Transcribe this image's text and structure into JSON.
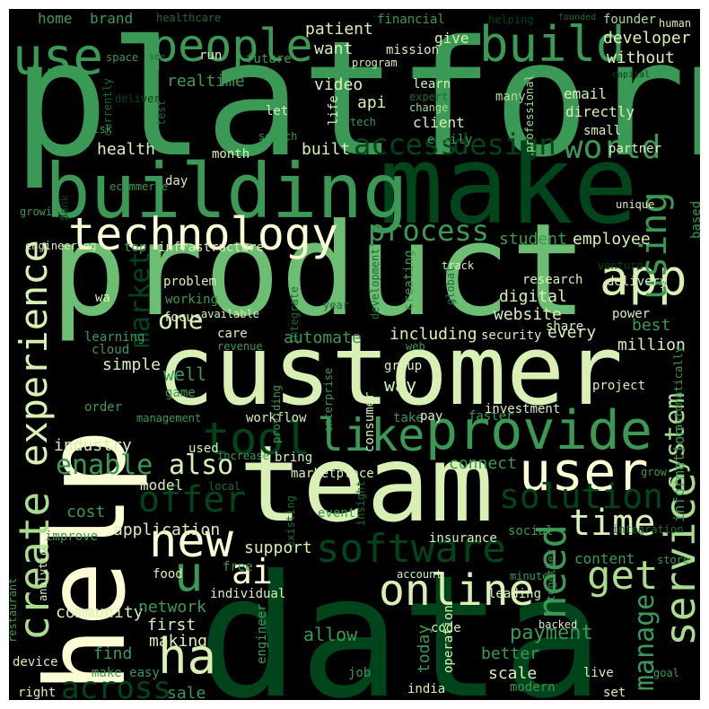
{
  "palette": {
    "background": "#000000",
    "darkest": "#00441b",
    "dark": "#1b6b3a",
    "mid": "#3a9a55",
    "midlight": "#6cbf72",
    "light": "#a9dc8e",
    "pale": "#d9f0b5",
    "cream": "#fdfdd5"
  },
  "words": [
    {
      "text": "platform",
      "color": "mid"
    },
    {
      "text": "product",
      "color": "midlight"
    },
    {
      "text": "data",
      "color": "darkest"
    },
    {
      "text": "help",
      "color": "cream"
    },
    {
      "text": "customer",
      "color": "pale"
    },
    {
      "text": "team",
      "color": "pale"
    },
    {
      "text": "make",
      "color": "darkest"
    },
    {
      "text": "building",
      "color": "mid"
    },
    {
      "text": "technology",
      "color": "cream"
    },
    {
      "text": "people",
      "color": "mid"
    },
    {
      "text": "use",
      "color": "mid"
    },
    {
      "text": "build",
      "color": "mid"
    },
    {
      "text": "app",
      "color": "pale"
    },
    {
      "text": "using",
      "color": "mid"
    },
    {
      "text": "tool",
      "color": "darkest"
    },
    {
      "text": "like",
      "color": "mid"
    },
    {
      "text": "provide",
      "color": "mid"
    },
    {
      "text": "user",
      "color": "cream"
    },
    {
      "text": "experience",
      "color": "pale"
    },
    {
      "text": "create",
      "color": "light"
    },
    {
      "text": "software",
      "color": "darkest"
    },
    {
      "text": "online",
      "color": "pale"
    },
    {
      "text": "service",
      "color": "light"
    },
    {
      "text": "ha",
      "color": "pale"
    },
    {
      "text": "need",
      "color": "mid"
    },
    {
      "text": "new",
      "color": "cream"
    },
    {
      "text": "ai",
      "color": "cream"
    },
    {
      "text": "get",
      "color": "light"
    },
    {
      "text": "time",
      "color": "pale"
    },
    {
      "text": "solution",
      "color": "darkest"
    },
    {
      "text": "offer",
      "color": "darkest"
    },
    {
      "text": "world",
      "color": "mid"
    },
    {
      "text": "access",
      "color": "darkest"
    },
    {
      "text": "design",
      "color": "darkest"
    },
    {
      "text": "process",
      "color": "mid"
    },
    {
      "text": "u",
      "color": "mid"
    },
    {
      "text": "system",
      "color": "light"
    },
    {
      "text": "across",
      "color": "darkest"
    },
    {
      "text": "manage",
      "color": "mid"
    },
    {
      "text": "market",
      "color": "darkest"
    },
    {
      "text": "enable",
      "color": "mid"
    },
    {
      "text": "also",
      "color": "pale"
    },
    {
      "text": "one",
      "color": "pale"
    },
    {
      "text": "home",
      "color": "mid"
    },
    {
      "text": "brand",
      "color": "mid"
    },
    {
      "text": "healthcare",
      "color": "dark"
    },
    {
      "text": "patient",
      "color": "pale"
    },
    {
      "text": "financial",
      "color": "mid"
    },
    {
      "text": "helping",
      "color": "darkest"
    },
    {
      "text": "founded",
      "color": "dark"
    },
    {
      "text": "founder",
      "color": "light"
    },
    {
      "text": "human",
      "color": "pale"
    },
    {
      "text": "want",
      "color": "pale"
    },
    {
      "text": "mission",
      "color": "pale"
    },
    {
      "text": "give",
      "color": "pale"
    },
    {
      "text": "developer",
      "color": "pale"
    },
    {
      "text": "space",
      "color": "mid"
    },
    {
      "text": "see",
      "color": "dark"
    },
    {
      "text": "run",
      "color": "pale"
    },
    {
      "text": "future",
      "color": "mid"
    },
    {
      "text": "program",
      "color": "pale"
    },
    {
      "text": "without",
      "color": "pale"
    },
    {
      "text": "capital",
      "color": "darkest"
    },
    {
      "text": "realtime",
      "color": "mid"
    },
    {
      "text": "video",
      "color": "pale"
    },
    {
      "text": "learn",
      "color": "pale"
    },
    {
      "text": "email",
      "color": "pale"
    },
    {
      "text": "many",
      "color": "light"
    },
    {
      "text": "currently",
      "color": "dark"
    },
    {
      "text": "test",
      "color": "dark"
    },
    {
      "text": "deliver",
      "color": "darkest"
    },
    {
      "text": "api",
      "color": "pale"
    },
    {
      "text": "expert",
      "color": "dark"
    },
    {
      "text": "change",
      "color": "light"
    },
    {
      "text": "directly",
      "color": "pale"
    },
    {
      "text": "let",
      "color": "pale"
    },
    {
      "text": "life",
      "color": "pale"
    },
    {
      "text": "client",
      "color": "pale"
    },
    {
      "text": "professional",
      "color": "light"
    },
    {
      "text": "small",
      "color": "pale"
    },
    {
      "text": "risk",
      "color": "mid"
    },
    {
      "text": "tech",
      "color": "mid"
    },
    {
      "text": "easily",
      "color": "mid"
    },
    {
      "text": "search",
      "color": "mid"
    },
    {
      "text": "partner",
      "color": "pale"
    },
    {
      "text": "health",
      "color": "pale"
    },
    {
      "text": "built",
      "color": "pale"
    },
    {
      "text": "month",
      "color": "pale"
    },
    {
      "text": "day",
      "color": "pale"
    },
    {
      "text": "ecommerce",
      "color": "mid"
    },
    {
      "text": "growing",
      "color": "mid"
    },
    {
      "text": "unique",
      "color": "pale"
    },
    {
      "text": "based",
      "color": "mid"
    },
    {
      "text": "bank",
      "color": "darkest"
    },
    {
      "text": "engineering",
      "color": "pale"
    },
    {
      "text": "top",
      "color": "mid"
    },
    {
      "text": "infrastructure",
      "color": "pale"
    },
    {
      "text": "student",
      "color": "mid"
    },
    {
      "text": "employee",
      "color": "pale"
    },
    {
      "text": "track",
      "color": "pale"
    },
    {
      "text": "venture",
      "color": "darkest"
    },
    {
      "text": "delivery",
      "color": "pale"
    },
    {
      "text": "creating",
      "color": "mid"
    },
    {
      "text": "global",
      "color": "dark"
    },
    {
      "text": "research",
      "color": "pale"
    },
    {
      "text": "digital",
      "color": "pale"
    },
    {
      "text": "problem",
      "color": "pale"
    },
    {
      "text": "working",
      "color": "mid"
    },
    {
      "text": "website",
      "color": "pale"
    },
    {
      "text": "focus",
      "color": "pale"
    },
    {
      "text": "year",
      "color": "dark"
    },
    {
      "text": "development",
      "color": "dark"
    },
    {
      "text": "power",
      "color": "pale"
    },
    {
      "text": "wa",
      "color": "pale"
    },
    {
      "text": "available",
      "color": "pale"
    },
    {
      "text": "learning",
      "color": "mid"
    },
    {
      "text": "integrate",
      "color": "dark"
    },
    {
      "text": "share",
      "color": "pale"
    },
    {
      "text": "care",
      "color": "pale"
    },
    {
      "text": "revenue",
      "color": "mid"
    },
    {
      "text": "web",
      "color": "mid"
    },
    {
      "text": "security",
      "color": "pale"
    },
    {
      "text": "including",
      "color": "pale"
    },
    {
      "text": "every",
      "color": "pale"
    },
    {
      "text": "best",
      "color": "mid"
    },
    {
      "text": "automate",
      "color": "mid"
    },
    {
      "text": "million",
      "color": "pale"
    },
    {
      "text": "cloud",
      "color": "mid"
    },
    {
      "text": "simple",
      "color": "pale"
    },
    {
      "text": "well",
      "color": "mid"
    },
    {
      "text": "game",
      "color": "mid"
    },
    {
      "text": "group",
      "color": "pale"
    },
    {
      "text": "way",
      "color": "pale"
    },
    {
      "text": "project",
      "color": "pale"
    },
    {
      "text": "automatically",
      "color": "mid"
    },
    {
      "text": "order",
      "color": "mid"
    },
    {
      "text": "enterprise",
      "color": "mid"
    },
    {
      "text": "consumer",
      "color": "pale"
    },
    {
      "text": "management",
      "color": "mid"
    },
    {
      "text": "workflow",
      "color": "pale"
    },
    {
      "text": "providing",
      "color": "mid"
    },
    {
      "text": "take",
      "color": "mid"
    },
    {
      "text": "pay",
      "color": "pale"
    },
    {
      "text": "faster",
      "color": "mid"
    },
    {
      "text": "investment",
      "color": "pale"
    },
    {
      "text": "industry",
      "color": "pale"
    },
    {
      "text": "used",
      "color": "pale"
    },
    {
      "text": "increase",
      "color": "mid"
    },
    {
      "text": "bring",
      "color": "pale"
    },
    {
      "text": "marketplace",
      "color": "pale"
    },
    {
      "text": "connect",
      "color": "mid"
    },
    {
      "text": "information",
      "color": "mid"
    },
    {
      "text": "grow",
      "color": "mid"
    },
    {
      "text": "model",
      "color": "pale"
    },
    {
      "text": "local",
      "color": "dark"
    },
    {
      "text": "cost",
      "color": "mid"
    },
    {
      "text": "event",
      "color": "mid"
    },
    {
      "text": "application",
      "color": "pale"
    },
    {
      "text": "improve",
      "color": "mid"
    },
    {
      "text": "existing",
      "color": "dark"
    },
    {
      "text": "insight",
      "color": "dark"
    },
    {
      "text": "social",
      "color": "mid"
    },
    {
      "text": "integration",
      "color": "dark"
    },
    {
      "text": "insurance",
      "color": "pale"
    },
    {
      "text": "content",
      "color": "mid"
    },
    {
      "text": "support",
      "color": "pale"
    },
    {
      "text": "store",
      "color": "mid"
    },
    {
      "text": "analytics",
      "color": "pale"
    },
    {
      "text": "free",
      "color": "mid"
    },
    {
      "text": "food",
      "color": "pale"
    },
    {
      "text": "account",
      "color": "pale"
    },
    {
      "text": "minute",
      "color": "mid"
    },
    {
      "text": "together",
      "color": "mid"
    },
    {
      "text": "community",
      "color": "pale"
    },
    {
      "text": "individual",
      "color": "pale"
    },
    {
      "text": "leading",
      "color": "pale"
    },
    {
      "text": "network",
      "color": "mid"
    },
    {
      "text": "first",
      "color": "pale"
    },
    {
      "text": "payment",
      "color": "mid"
    },
    {
      "text": "restaurant",
      "color": "mid"
    },
    {
      "text": "making",
      "color": "pale"
    },
    {
      "text": "allow",
      "color": "mid"
    },
    {
      "text": "backed",
      "color": "pale"
    },
    {
      "text": "code",
      "color": "pale"
    },
    {
      "text": "find",
      "color": "mid"
    },
    {
      "text": "engineer",
      "color": "mid"
    },
    {
      "text": "today",
      "color": "mid"
    },
    {
      "text": "operation",
      "color": "pale"
    },
    {
      "text": "better",
      "color": "mid"
    },
    {
      "text": "device",
      "color": "pale"
    },
    {
      "text": "make easy",
      "color": "mid"
    },
    {
      "text": "scale",
      "color": "pale"
    },
    {
      "text": "job",
      "color": "mid"
    },
    {
      "text": "live",
      "color": "pale"
    },
    {
      "text": "modern",
      "color": "mid"
    },
    {
      "text": "goal",
      "color": "mid"
    },
    {
      "text": "right",
      "color": "pale"
    },
    {
      "text": "sale",
      "color": "mid"
    },
    {
      "text": "india",
      "color": "pale"
    },
    {
      "text": "set",
      "color": "pale"
    }
  ]
}
